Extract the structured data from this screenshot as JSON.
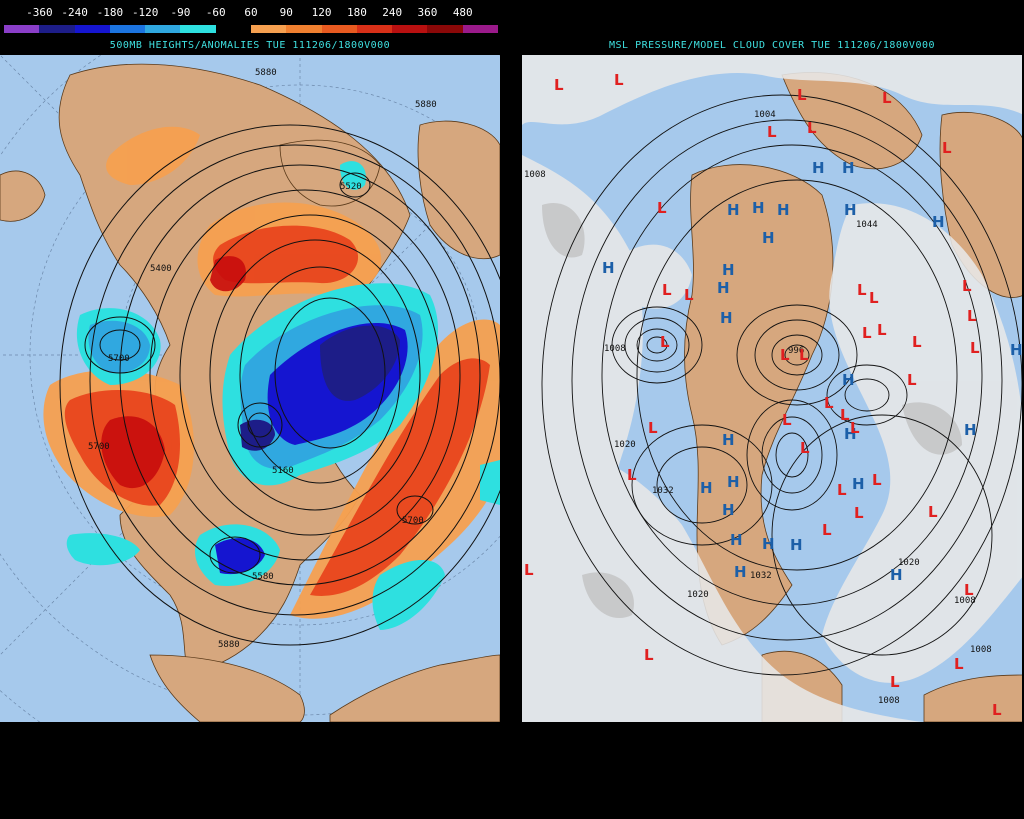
{
  "left_panel": {
    "title": "500MB HEIGHTS/ANOMALIES TUE 111206/1800V000",
    "colorbar": {
      "labels": [
        "-360",
        "-240",
        "-180",
        "-120",
        "-90",
        "-60",
        "60",
        "90",
        "120",
        "180",
        "240",
        "360",
        "480"
      ],
      "colors": [
        "#8a3ec8",
        "#1d1d88",
        "#1515d0",
        "#1c74e0",
        "#30a8e0",
        "#2ee0e0",
        "#000000",
        "#f6a050",
        "#f08030",
        "#e85a20",
        "#d83018",
        "#b81010",
        "#8a0808",
        "#9a1a8a"
      ]
    },
    "contour_labels": [
      "5880",
      "5880",
      "5520",
      "5700",
      "5700",
      "5700",
      "5160",
      "5580",
      "5880",
      "5400"
    ],
    "colors": {
      "ocean": "#a6c9ec",
      "land": "#d6a77e",
      "positive": "#e8461e",
      "negative": "#2030d8"
    }
  },
  "right_panel": {
    "title": "MSL PRESSURE/MODEL CLOUD COVER TUE 111206/1800V000",
    "isobar_labels": [
      "1008",
      "1008",
      "1020",
      "1032",
      "1020",
      "1020",
      "1008",
      "1008",
      "1008",
      "1032",
      "1004",
      "996",
      "1044"
    ],
    "high_symbol": "H",
    "low_symbol": "L",
    "colors": {
      "high": "#1c5fa8",
      "low": "#e02020",
      "cloud": "#e8e8e8"
    }
  }
}
